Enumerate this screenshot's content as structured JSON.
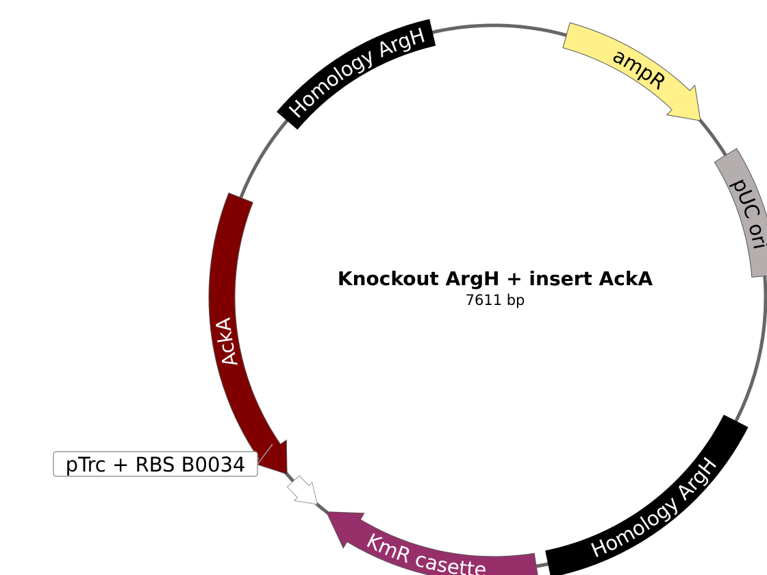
{
  "plasmid": {
    "name": "Knockout ArgH + insert AckA",
    "size_label": "7611 bp",
    "backbone_color": "#666666"
  },
  "features": [
    {
      "id": "homology-argh-top",
      "label": "Homology ArgH",
      "type": "box",
      "color": "#000000",
      "text_color": "#ffffff"
    },
    {
      "id": "ampr",
      "label": "ampR",
      "type": "arrow-cw",
      "color": "#fff089",
      "text_color": "#000000"
    },
    {
      "id": "puc-ori",
      "label": "pUC ori",
      "type": "box",
      "color": "#b4aeae",
      "text_color": "#000000"
    },
    {
      "id": "homology-argh-bottom",
      "label": "Homology ArgH",
      "type": "box",
      "color": "#000000",
      "text_color": "#ffffff"
    },
    {
      "id": "kmr-casette",
      "label": "KmR casette",
      "type": "arrow-cw",
      "color": "#97306a",
      "text_color": "#ffffff"
    },
    {
      "id": "ptrc-rbs",
      "label": "pTrc + RBS B0034",
      "type": "arrow-ccw-small",
      "color": "#ffffff",
      "text_color": "#000000"
    },
    {
      "id": "acka",
      "label": "AckA",
      "type": "arrow-ccw",
      "color": "#800000",
      "text_color": "#ffffff"
    }
  ]
}
